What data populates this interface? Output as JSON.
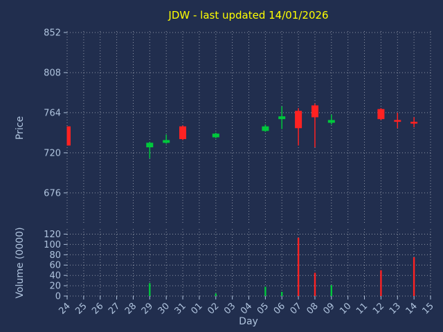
{
  "colors": {
    "background": "#212e4e",
    "title": "#ffff00",
    "label": "#b0c4de",
    "grid": "rgba(255,255,255,0.5)",
    "up": "#00c83c",
    "down": "#ff2222"
  },
  "chart_data": {
    "type": "candlestick+volume",
    "title": "JDW - last updated 14/01/2026",
    "xlabel": "Day",
    "ylabel_price": "Price",
    "ylabel_volume": "Volume (0000)",
    "grid": "dotted",
    "price_axis": {
      "ticks": [
        852,
        808,
        764,
        720,
        676
      ],
      "range": [
        641,
        853.5
      ]
    },
    "volume_axis": {
      "ticks": [
        120,
        100,
        80,
        60,
        40,
        20,
        0
      ],
      "range": [
        0,
        130
      ]
    },
    "categories": [
      "24",
      "25",
      "26",
      "27",
      "28",
      "29",
      "30",
      "31",
      "01",
      "02",
      "03",
      "04",
      "05",
      "06",
      "07",
      "08",
      "09",
      "10",
      "11",
      "12",
      "13",
      "14",
      "15"
    ],
    "candles": [
      {
        "day": "24",
        "open": 749,
        "high": 749,
        "low": 728,
        "close": 728,
        "volume": 0
      },
      {
        "day": "29",
        "open": 726,
        "high": 732,
        "low": 714,
        "close": 731,
        "volume": 25
      },
      {
        "day": "30",
        "open": 731,
        "high": 740,
        "low": 730,
        "close": 734,
        "volume": 0
      },
      {
        "day": "31",
        "open": 749,
        "high": 750,
        "low": 734,
        "close": 735,
        "volume": 0
      },
      {
        "day": "02",
        "open": 737,
        "high": 742,
        "low": 736,
        "close": 741,
        "volume": 5
      },
      {
        "day": "05",
        "open": 744,
        "high": 751,
        "low": 743,
        "close": 749,
        "volume": 18
      },
      {
        "day": "06",
        "open": 757,
        "high": 771,
        "low": 746,
        "close": 760,
        "volume": 8
      },
      {
        "day": "07",
        "open": 766,
        "high": 769,
        "low": 728,
        "close": 747,
        "volume": 113
      },
      {
        "day": "08",
        "open": 772,
        "high": 774,
        "low": 726,
        "close": 759,
        "volume": 45
      },
      {
        "day": "09",
        "open": 753,
        "high": 762,
        "low": 751,
        "close": 756,
        "volume": 21
      },
      {
        "day": "12",
        "open": 768,
        "high": 769,
        "low": 756,
        "close": 757,
        "volume": 50
      },
      {
        "day": "13",
        "open": 756,
        "high": 764,
        "low": 747,
        "close": 754,
        "volume": 0
      },
      {
        "day": "14",
        "open": 754,
        "high": 759,
        "low": 748,
        "close": 752,
        "volume": 75
      }
    ]
  }
}
